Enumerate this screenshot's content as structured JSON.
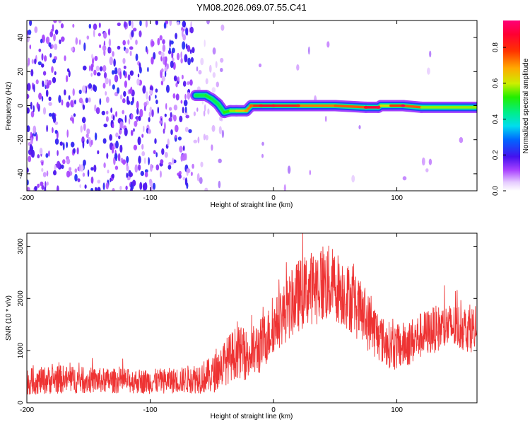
{
  "title": "YM08.2026.069.07.55.C41",
  "chart_data": [
    {
      "type": "heatmap",
      "title": "YM08.2026.069.07.55.C41",
      "xlabel": "Height of straight line (km)",
      "ylabel": "Frequency (Hz)",
      "xlim": [
        -200,
        165
      ],
      "ylim": [
        -50,
        50
      ],
      "x_ticks": [
        -200,
        -100,
        0,
        100
      ],
      "y_ticks": [
        -40,
        -20,
        0,
        20,
        40
      ],
      "x_tick_labels": [
        "-200",
        "-100",
        "0",
        "100"
      ],
      "y_tick_labels": [
        "-40",
        "-20",
        "0",
        "20",
        "40"
      ],
      "colorbar": {
        "label": "Normalized spectral amplitude",
        "range": [
          0,
          0.95
        ],
        "ticks": [
          0,
          0.2,
          0.4,
          0.6,
          0.8
        ],
        "tick_labels": [
          "0.0",
          "0.2",
          "0.4",
          "0.6",
          "0.8"
        ],
        "colormap": "rainbow (white-violet-blue-cyan-green-yellow-red-magenta)"
      },
      "regions": [
        {
          "x": [
            -200,
            -65
          ],
          "description": "broadband noise, amplitude 0.1-0.25"
        },
        {
          "x": [
            -65,
            -40
          ],
          "description": "transition, sparse noise"
        },
        {
          "x": [
            -40,
            165
          ],
          "description": "narrow band near 0 Hz, amplitude 0.4-0.9"
        }
      ],
      "ridge": {
        "x": [
          -63,
          -55,
          -50,
          -45,
          -40,
          -35,
          -30,
          -22,
          -18,
          -10,
          0,
          20,
          50,
          75,
          85,
          87,
          95,
          105,
          120,
          165
        ],
        "freq": [
          6,
          6,
          4,
          1,
          -4,
          -3,
          -3,
          -3,
          0,
          0,
          0,
          0,
          0,
          -1,
          -1,
          0,
          0,
          0,
          -1,
          -1
        ],
        "amplitude": [
          0.45,
          0.5,
          0.5,
          0.45,
          0.5,
          0.55,
          0.6,
          0.7,
          0.75,
          0.85,
          0.85,
          0.8,
          0.65,
          0.85,
          0.9,
          0.6,
          0.65,
          0.9,
          0.6,
          0.55
        ]
      }
    },
    {
      "type": "line",
      "xlabel": "Height of straight line (km)",
      "ylabel": "SNR (10 * v/v)",
      "xlim": [
        -200,
        165
      ],
      "ylim": [
        0,
        3250
      ],
      "x_ticks": [
        -200,
        -100,
        0,
        100
      ],
      "y_ticks": [
        0,
        1000,
        2000,
        3000
      ],
      "x_tick_labels": [
        "-200",
        "-100",
        "0",
        "100"
      ],
      "y_tick_labels": [
        "0",
        "1000",
        "2000",
        "3000"
      ],
      "color": "#ee3333",
      "envelope": {
        "x": [
          -200,
          -175,
          -150,
          -125,
          -100,
          -75,
          -50,
          -40,
          -30,
          -20,
          -10,
          0,
          10,
          20,
          30,
          40,
          50,
          60,
          70,
          80,
          90,
          100,
          110,
          120,
          130,
          140,
          150,
          165
        ],
        "mean": [
          400,
          450,
          430,
          420,
          410,
          430,
          520,
          760,
          980,
          900,
          1100,
          1450,
          1750,
          2050,
          2200,
          2300,
          2250,
          2050,
          1750,
          1450,
          1150,
          1050,
          1150,
          1300,
          1400,
          1450,
          1450,
          1400
        ],
        "spread": [
          250,
          280,
          250,
          240,
          240,
          250,
          350,
          450,
          500,
          500,
          550,
          500,
          600,
          700,
          700,
          800,
          700,
          650,
          600,
          550,
          450,
          450,
          450,
          450,
          450,
          450,
          450,
          450
        ]
      }
    }
  ]
}
